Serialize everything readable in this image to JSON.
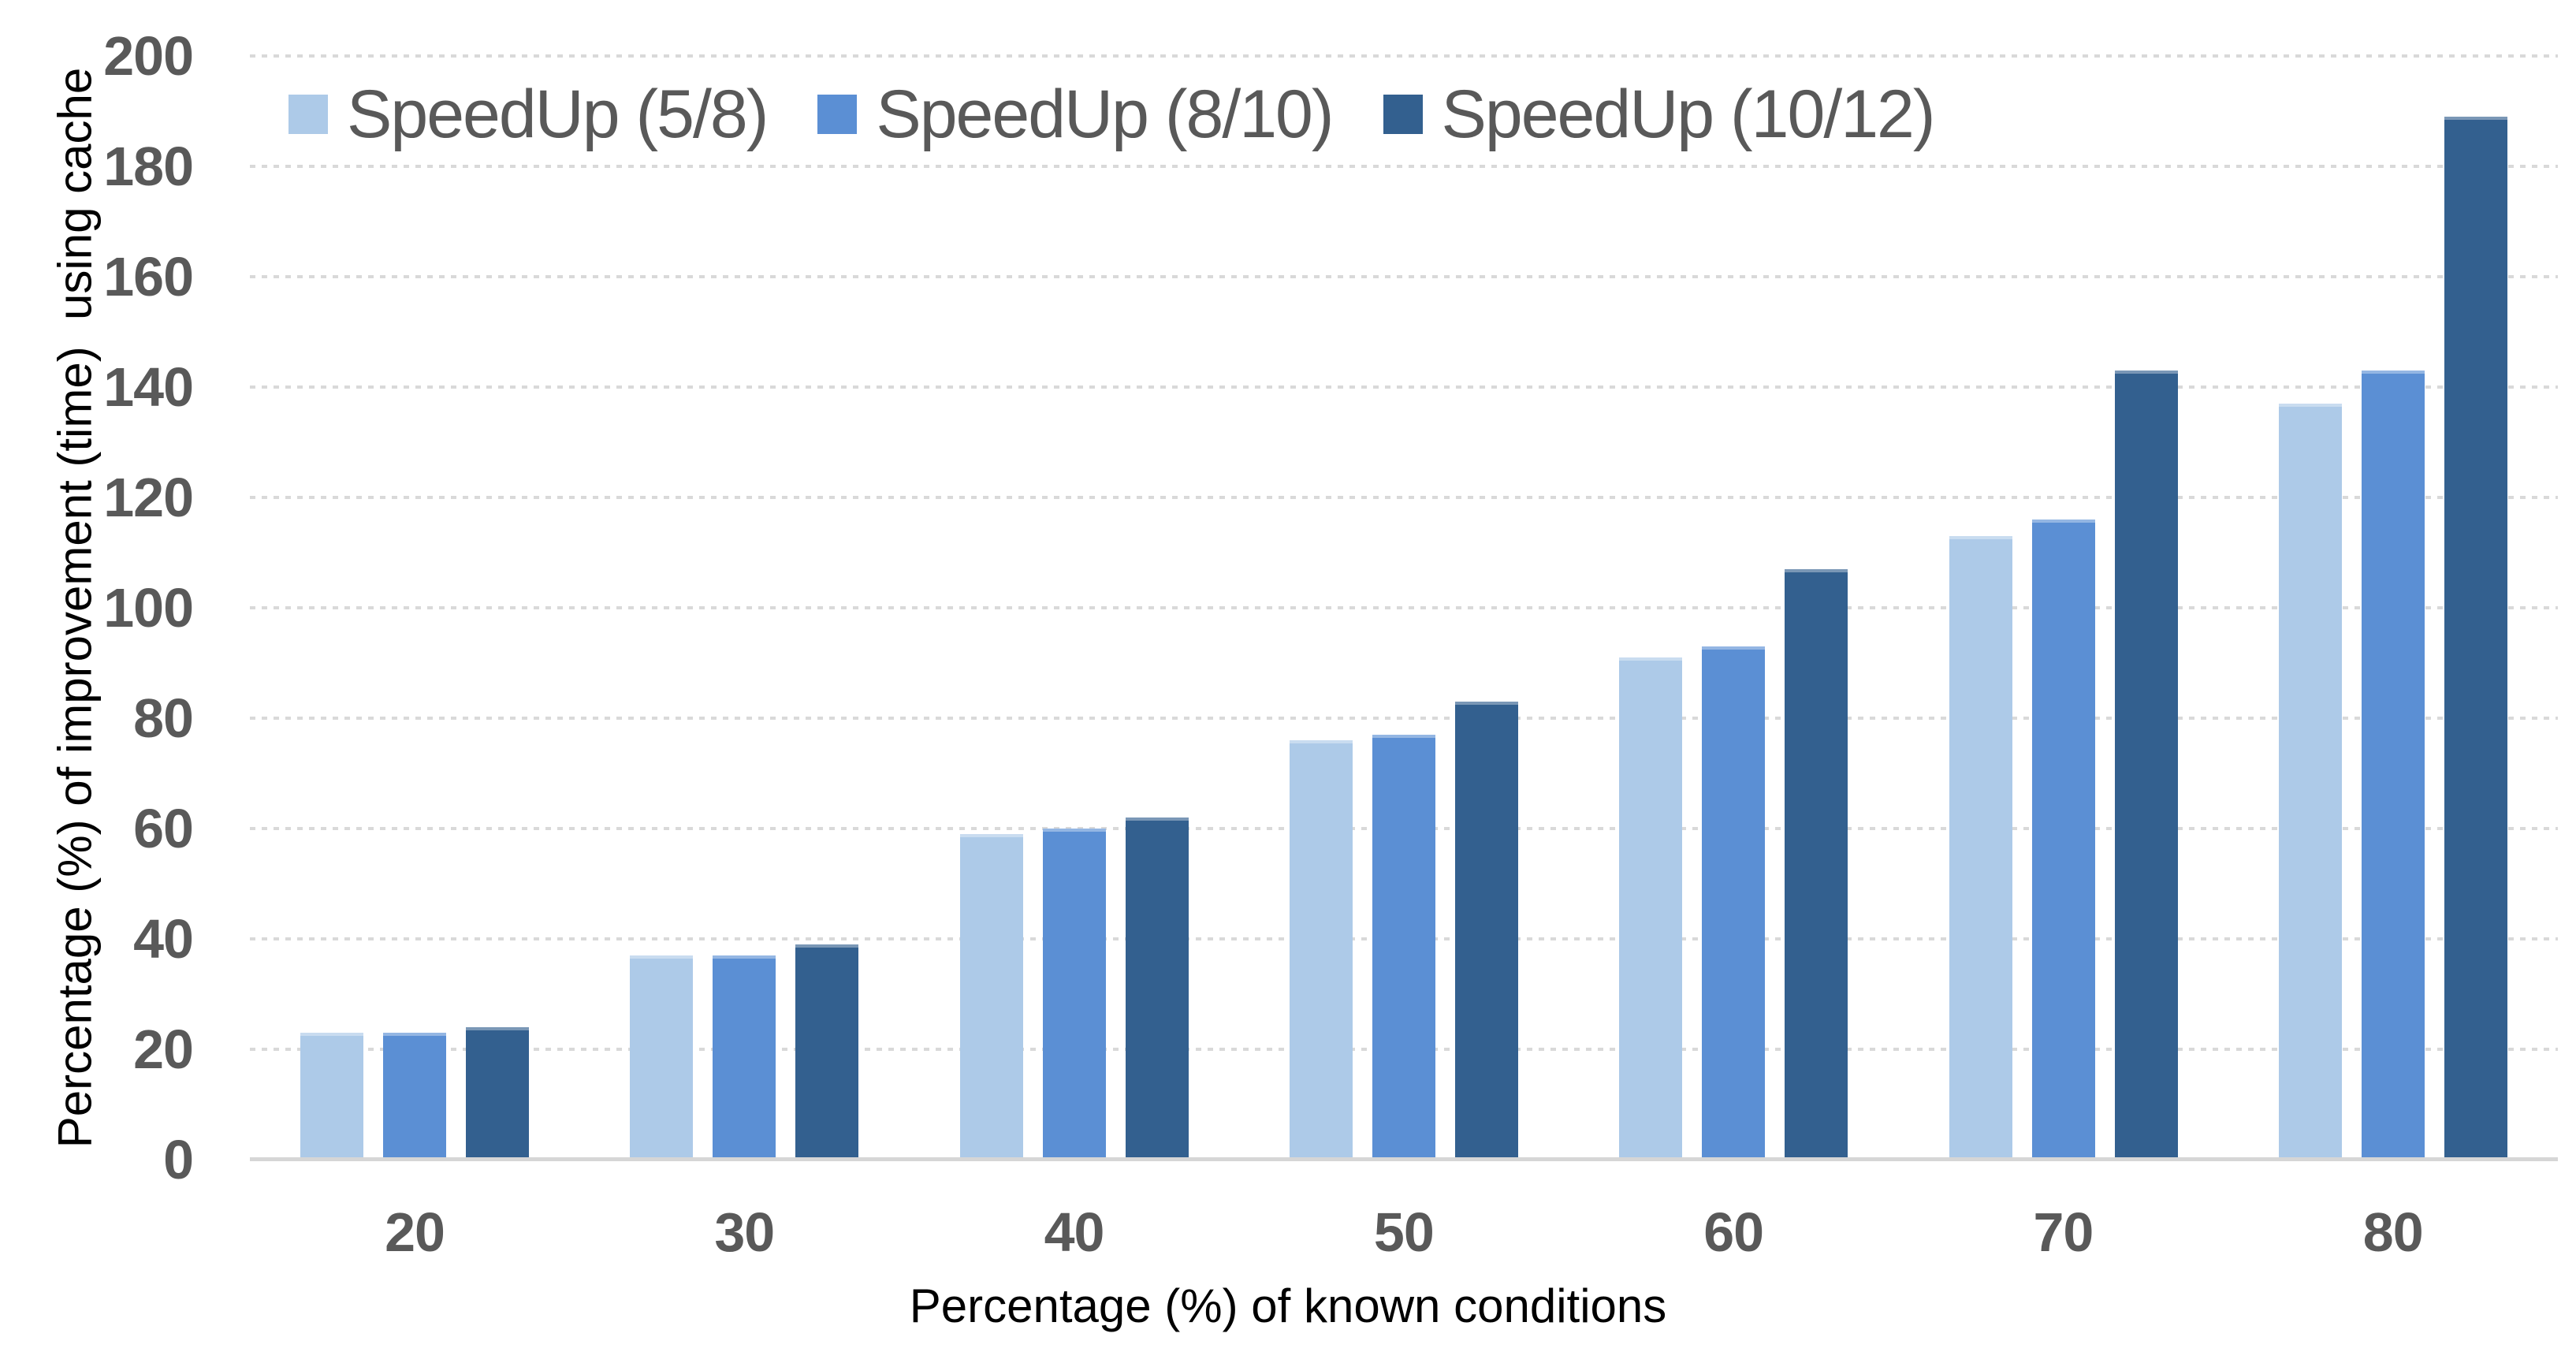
{
  "page": {
    "background": "#FFFFFF"
  },
  "chart_data": {
    "type": "bar",
    "title": "",
    "xlabel": "Percentage (%) of known conditions",
    "ylabel": "Percentage (%) of improvement (time)  using cache",
    "categories": [
      "20",
      "30",
      "40",
      "50",
      "60",
      "70",
      "80"
    ],
    "series": [
      {
        "name": "SpeedUp (5/8)",
        "color": "#ADCAE8",
        "values": [
          23,
          37,
          59,
          76,
          91,
          113,
          137
        ]
      },
      {
        "name": "SpeedUp (8/10)",
        "color": "#5B8FD4",
        "values": [
          23,
          37,
          60,
          77,
          93,
          116,
          143
        ]
      },
      {
        "name": "SpeedUp (10/12)",
        "color": "#33608F",
        "values": [
          24,
          39,
          62,
          83,
          107,
          143,
          189
        ]
      }
    ],
    "ylim": [
      0,
      200
    ],
    "ytick_step": 20,
    "grid": "horizontal-dotted",
    "legend_position": "top-left",
    "colors": {
      "tick_label": "#595959",
      "axis_title": "#000000",
      "gridline": "#D9D9D9",
      "axis_line": "#D6D6D6",
      "legend_text": "#595959"
    }
  }
}
